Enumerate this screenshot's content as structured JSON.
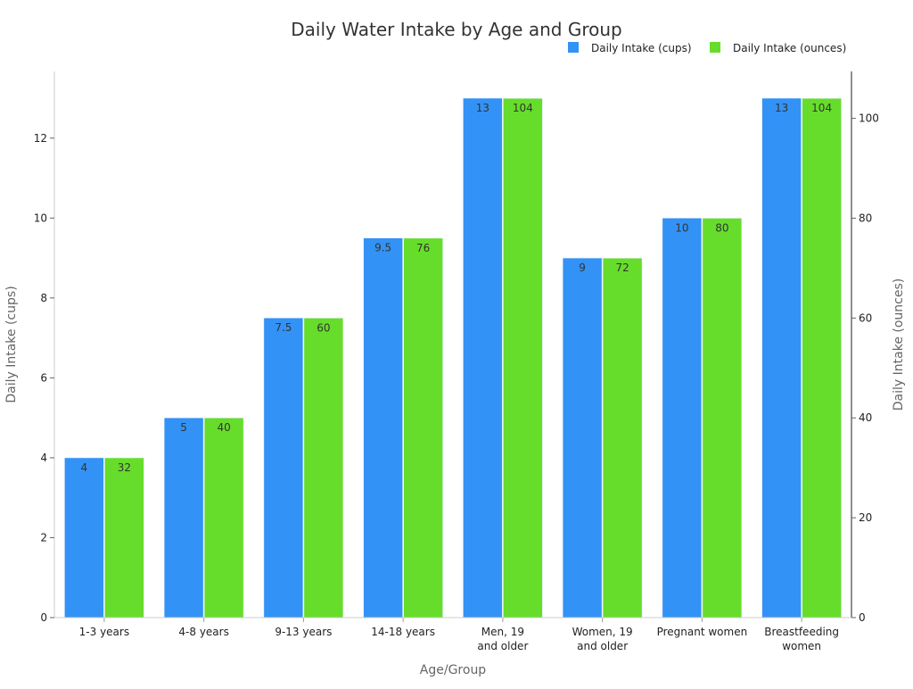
{
  "chart_data": {
    "type": "bar",
    "title": "Daily Water Intake by Age and Group",
    "xlabel": "Age/Group",
    "ylabel": "Daily Intake (cups)",
    "ylabel_right": "Daily Intake (ounces)",
    "categories": [
      [
        "1-3 years"
      ],
      [
        "4-8 years"
      ],
      [
        "9-13 years"
      ],
      [
        "14-18 years"
      ],
      [
        "Men, 19",
        "and older"
      ],
      [
        "Women, 19",
        "and older"
      ],
      [
        "Pregnant women"
      ],
      [
        "Breastfeeding",
        "women"
      ]
    ],
    "series": [
      {
        "name": "Daily Intake (cups)",
        "axis": "left",
        "color": "#3392f5",
        "values": [
          4,
          5,
          7.5,
          9.5,
          13,
          9,
          10,
          13
        ],
        "labels": [
          "4",
          "5",
          "7.5",
          "9.5",
          "13",
          "9",
          "10",
          "13"
        ]
      },
      {
        "name": "Daily Intake (ounces)",
        "axis": "right",
        "color": "#66dd2a",
        "values": [
          32,
          40,
          60,
          76,
          104,
          72,
          80,
          104
        ],
        "labels": [
          "32",
          "40",
          "60",
          "76",
          "104",
          "72",
          "80",
          "104"
        ]
      }
    ],
    "ylim": [
      0,
      13.67
    ],
    "ylim_right": [
      0,
      109.4
    ],
    "yticks": [
      "0",
      "2",
      "4",
      "6",
      "8",
      "10",
      "12"
    ],
    "yticks_right": [
      "0",
      "20",
      "40",
      "60",
      "80",
      "100"
    ],
    "grid": false,
    "legend_position": "top-right"
  }
}
